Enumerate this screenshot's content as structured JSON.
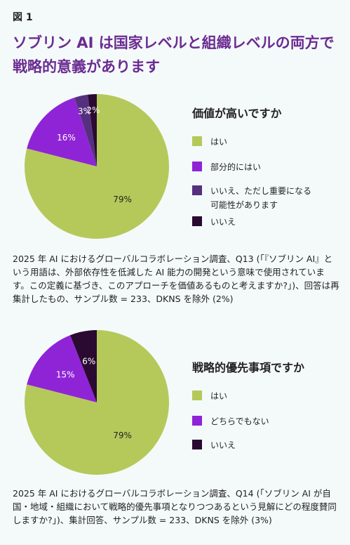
{
  "figure_label": "図 1",
  "title": "ソブリン AI は国家レベルと組織レベルの両方で戦略的意義があります",
  "chart_data": [
    {
      "type": "pie",
      "title": "価値が高いですか",
      "slices": [
        {
          "label": "はい",
          "value": 79,
          "display": "79%",
          "color": "#b5c95a"
        },
        {
          "label": "部分的にはい",
          "value": 16,
          "display": "16%",
          "color": "#8f24d6"
        },
        {
          "label": "いいえ、ただし重要になる可能性があります",
          "value": 3,
          "display": "3%",
          "color": "#54307e"
        },
        {
          "label": "いいえ",
          "value": 2,
          "display": "2%",
          "color": "#2a0a30"
        }
      ]
    },
    {
      "type": "pie",
      "title": "戦略的優先事項ですか",
      "slices": [
        {
          "label": "はい",
          "value": 79,
          "display": "79%",
          "color": "#b5c95a"
        },
        {
          "label": "どちらでもない",
          "value": 15,
          "display": "15%",
          "color": "#8f24d6"
        },
        {
          "label": "いいえ",
          "value": 6,
          "display": "6%",
          "color": "#2a0a30"
        }
      ]
    }
  ],
  "footnotes": [
    "2025 年 AI におけるグローバルコラボレーション調査、Q13 (「『ソブリン AI』という用語は、外部依存性を低減した AI 能力の開発という意味で使用されています。この定義に基づき、このアプローチを価値あるものと考えますか?」)、回答は再集計したもの、サンプル数 = 233、DKNS を除外 (2%)",
    "2025 年 AI におけるグローバルコラボレーション調査、Q14 (「ソブリン AI が自国・地域・組織において戦略的優先事項となりつつあるという見解にどの程度賛同しますか?」)、集計回答、サンプル数 = 233、DKNS を除外 (3%)"
  ]
}
